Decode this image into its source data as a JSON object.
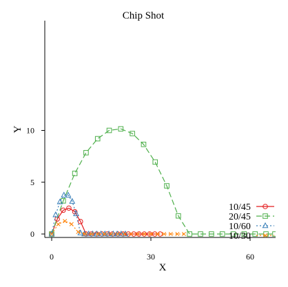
{
  "chart_data": {
    "type": "line",
    "title": "Chip Shot",
    "xlabel": "X",
    "ylabel": "Y",
    "xlim": [
      -4,
      67.5
    ],
    "ylim": [
      -0.3,
      10.7
    ],
    "xticks": [
      0,
      30,
      60
    ],
    "yticks": [
      0,
      5,
      10
    ],
    "grid": false,
    "legend": "bottom-right",
    "series": [
      {
        "name": "10/45",
        "color": "#e41a1c",
        "marker": "circle",
        "dash": "",
        "x": [
          0,
          1.7,
          3.5,
          5.2,
          7.0,
          8.7,
          10.4,
          12.0,
          13.6,
          15.2,
          16.8,
          18.4,
          20.0,
          21.6,
          23.2,
          24.8,
          26.4,
          28.0,
          29.6,
          31.2,
          32.8
        ],
        "y": [
          0,
          1.45,
          2.3,
          2.5,
          2.15,
          1.2,
          0,
          0,
          0,
          0,
          0,
          0,
          0,
          0,
          0,
          0,
          0,
          0,
          0,
          0,
          0
        ]
      },
      {
        "name": "20/45",
        "color": "#4daf4a",
        "marker": "square",
        "dash": "8,4",
        "x": [
          0,
          3.5,
          7.0,
          10.4,
          13.9,
          17.4,
          20.9,
          24.4,
          27.8,
          31.3,
          34.8,
          38.3,
          41.7,
          45.0,
          48.3,
          51.6,
          54.9,
          58.2,
          61.5,
          64.8,
          67.5
        ],
        "y": [
          0,
          3.2,
          5.85,
          7.85,
          9.2,
          10.0,
          10.15,
          9.7,
          8.65,
          6.95,
          4.65,
          1.75,
          0,
          0,
          0,
          0,
          0,
          0,
          0,
          0,
          0
        ]
      },
      {
        "name": "10/60",
        "color": "#377eb8",
        "marker": "triangle",
        "dash": "2,3",
        "x": [
          0,
          1.2,
          2.5,
          3.7,
          5.0,
          6.2,
          7.4,
          8.7,
          9.9,
          11.2,
          12.4,
          13.6,
          14.9,
          16.1,
          17.3,
          18.6,
          19.8,
          21.0,
          22.3
        ],
        "y": [
          0,
          1.85,
          3.1,
          3.75,
          3.75,
          3.15,
          1.95,
          0.1,
          0,
          0,
          0,
          0,
          0,
          0,
          0,
          0,
          0,
          0,
          0
        ]
      },
      {
        "name": "10/30",
        "color": "#ff7f00",
        "marker": "x",
        "dash": "2,3",
        "x": [
          0,
          2.0,
          4.0,
          6.0,
          8.0,
          10.0,
          12.0,
          14.0,
          16.0,
          18.0,
          20.0,
          22.0,
          24.0,
          26.0,
          28.0,
          30.0,
          32.0,
          34.0,
          36.0,
          38.0,
          40.0
        ],
        "y": [
          0,
          0.95,
          1.25,
          0.95,
          0.2,
          0,
          0,
          0,
          0,
          0,
          0,
          0,
          0,
          0,
          0,
          0,
          0,
          0,
          0,
          0,
          0
        ]
      }
    ]
  }
}
